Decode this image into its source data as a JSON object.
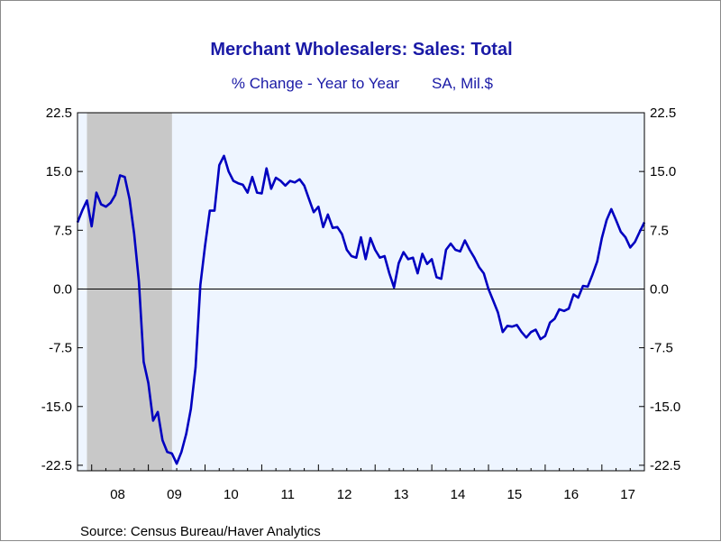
{
  "chart_data": {
    "type": "line",
    "title": "Merchant Wholesalers: Sales: Total",
    "subtitle_left": "% Change - Year to Year",
    "subtitle_right": "SA, Mil.$",
    "source": "Source:  Census Bureau/Haver Analytics",
    "ylim": [
      -23.2,
      22.5
    ],
    "y_ticks": [
      "22.5",
      "15.0",
      "7.5",
      "0.0",
      "-7.5",
      "-15.0",
      "-22.5"
    ],
    "y_tick_values": [
      22.5,
      15.0,
      7.5,
      0.0,
      -7.5,
      -15.0,
      -22.5
    ],
    "x_tick_labels": [
      "08",
      "09",
      "10",
      "11",
      "12",
      "13",
      "14",
      "15",
      "16",
      "17"
    ],
    "x_range": [
      "2007-10",
      "2017-10"
    ],
    "recession_shading": {
      "start": "2007-12",
      "end": "2009-06"
    },
    "grid": false,
    "zero_line": true,
    "series_color": "#0000c0",
    "plot_background": "#eef5ff",
    "recession_color": "#c8c8c8",
    "series": [
      {
        "values": [
          [
            "2007-10",
            8.5
          ],
          [
            "2007-11",
            10.0
          ],
          [
            "2007-12",
            11.3
          ],
          [
            "2008-01",
            8.0
          ],
          [
            "2008-02",
            12.3
          ],
          [
            "2008-03",
            10.8
          ],
          [
            "2008-04",
            10.5
          ],
          [
            "2008-05",
            11.0
          ],
          [
            "2008-06",
            12.0
          ],
          [
            "2008-07",
            14.5
          ],
          [
            "2008-08",
            14.3
          ],
          [
            "2008-09",
            11.5
          ],
          [
            "2008-10",
            7.0
          ],
          [
            "2008-11",
            1.0
          ],
          [
            "2008-12",
            -9.3
          ],
          [
            "2009-01",
            -12.0
          ],
          [
            "2009-02",
            -16.8
          ],
          [
            "2009-03",
            -15.7
          ],
          [
            "2009-04",
            -19.3
          ],
          [
            "2009-05",
            -20.8
          ],
          [
            "2009-06",
            -21.0
          ],
          [
            "2009-07",
            -22.3
          ],
          [
            "2009-08",
            -20.8
          ],
          [
            "2009-09",
            -18.5
          ],
          [
            "2009-10",
            -15.3
          ],
          [
            "2009-11",
            -10.0
          ],
          [
            "2009-12",
            0.5
          ],
          [
            "2010-01",
            5.5
          ],
          [
            "2010-02",
            10.0
          ],
          [
            "2010-03",
            10.0
          ],
          [
            "2010-04",
            15.8
          ],
          [
            "2010-05",
            17.0
          ],
          [
            "2010-06",
            15.0
          ],
          [
            "2010-07",
            13.8
          ],
          [
            "2010-08",
            13.5
          ],
          [
            "2010-09",
            13.3
          ],
          [
            "2010-10",
            12.3
          ],
          [
            "2010-11",
            14.3
          ],
          [
            "2010-12",
            12.3
          ],
          [
            "2011-01",
            12.2
          ],
          [
            "2011-02",
            15.4
          ],
          [
            "2011-03",
            12.8
          ],
          [
            "2011-04",
            14.2
          ],
          [
            "2011-05",
            13.8
          ],
          [
            "2011-06",
            13.2
          ],
          [
            "2011-07",
            13.8
          ],
          [
            "2011-08",
            13.6
          ],
          [
            "2011-09",
            14.0
          ],
          [
            "2011-10",
            13.2
          ],
          [
            "2011-11",
            11.5
          ],
          [
            "2011-12",
            9.8
          ],
          [
            "2012-01",
            10.5
          ],
          [
            "2012-02",
            7.9
          ],
          [
            "2012-03",
            9.5
          ],
          [
            "2012-04",
            7.8
          ],
          [
            "2012-05",
            7.9
          ],
          [
            "2012-06",
            7.0
          ],
          [
            "2012-07",
            5.0
          ],
          [
            "2012-08",
            4.2
          ],
          [
            "2012-09",
            4.0
          ],
          [
            "2012-10",
            6.6
          ],
          [
            "2012-11",
            3.8
          ],
          [
            "2012-12",
            6.5
          ],
          [
            "2013-01",
            5.0
          ],
          [
            "2013-02",
            4.0
          ],
          [
            "2013-03",
            4.2
          ],
          [
            "2013-04",
            2.0
          ],
          [
            "2013-05",
            0.2
          ],
          [
            "2013-06",
            3.3
          ],
          [
            "2013-07",
            4.7
          ],
          [
            "2013-08",
            3.8
          ],
          [
            "2013-09",
            4.0
          ],
          [
            "2013-10",
            2.0
          ],
          [
            "2013-11",
            4.5
          ],
          [
            "2013-12",
            3.2
          ],
          [
            "2014-01",
            3.8
          ],
          [
            "2014-02",
            1.5
          ],
          [
            "2014-03",
            1.3
          ],
          [
            "2014-04",
            5.0
          ],
          [
            "2014-05",
            5.8
          ],
          [
            "2014-06",
            5.0
          ],
          [
            "2014-07",
            4.8
          ],
          [
            "2014-08",
            6.2
          ],
          [
            "2014-09",
            5.0
          ],
          [
            "2014-10",
            4.0
          ],
          [
            "2014-11",
            2.8
          ],
          [
            "2014-12",
            2.0
          ],
          [
            "2015-01",
            0.0
          ],
          [
            "2015-02",
            -1.5
          ],
          [
            "2015-03",
            -3.0
          ],
          [
            "2015-04",
            -5.5
          ],
          [
            "2015-05",
            -4.7
          ],
          [
            "2015-06",
            -4.8
          ],
          [
            "2015-07",
            -4.6
          ],
          [
            "2015-08",
            -5.5
          ],
          [
            "2015-09",
            -6.2
          ],
          [
            "2015-10",
            -5.5
          ],
          [
            "2015-11",
            -5.2
          ],
          [
            "2015-12",
            -6.4
          ],
          [
            "2016-01",
            -6.0
          ],
          [
            "2016-02",
            -4.3
          ],
          [
            "2016-03",
            -3.8
          ],
          [
            "2016-04",
            -2.6
          ],
          [
            "2016-05",
            -2.8
          ],
          [
            "2016-06",
            -2.5
          ],
          [
            "2016-07",
            -0.7
          ],
          [
            "2016-08",
            -1.1
          ],
          [
            "2016-09",
            0.4
          ],
          [
            "2016-10",
            0.3
          ],
          [
            "2016-11",
            1.8
          ],
          [
            "2016-12",
            3.5
          ],
          [
            "2017-01",
            6.5
          ],
          [
            "2017-02",
            8.8
          ],
          [
            "2017-03",
            10.2
          ],
          [
            "2017-04",
            8.8
          ],
          [
            "2017-05",
            7.3
          ],
          [
            "2017-06",
            6.6
          ],
          [
            "2017-07",
            5.3
          ],
          [
            "2017-08",
            6.0
          ],
          [
            "2017-09",
            7.3
          ],
          [
            "2017-10",
            8.5
          ]
        ]
      }
    ]
  }
}
